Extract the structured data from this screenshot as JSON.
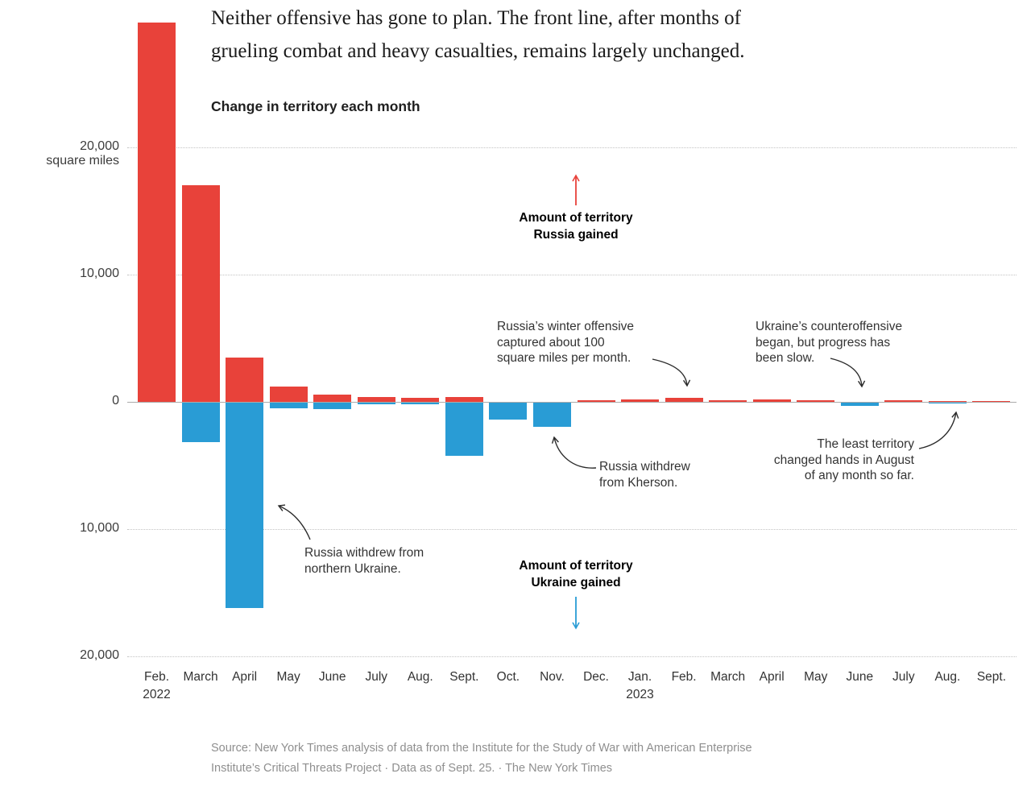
{
  "headline": "Neither offensive has gone to plan. The front line, after months of\ngrueling combat and heavy casualties, remains largely unchanged.",
  "source": "Source: New York Times analysis of data from the Institute for the Study of War with American Enterprise\nInstitute’s Critical Threats Project   ·   Data as of Sept. 25.   ·   The New York Times",
  "colors": {
    "russia_red": "#e8423a",
    "ukraine_blue": "#299cd5",
    "annotation_dark": "#2b2b2b",
    "source_gray": "#8f8f8f"
  },
  "annotations": {
    "russia_legend": "Amount of territory\nRussia gained",
    "ukraine_legend": "Amount of territory\nUkraine gained",
    "winter_offensive": "Russia’s winter offensive\ncaptured about 100\nsquare miles per month.",
    "counteroffensive": "Ukraine’s counteroffensive\nbegan, but progress has\nbeen slow.",
    "kherson": "Russia withdrew\nfrom Kherson.",
    "least_territory": "The least territory\nchanged hands in August\nof any month so far.",
    "northern_ukraine": "Russia withdrew from\nnorthern Ukraine."
  },
  "chart_data": {
    "type": "bar",
    "title": "Change in territory each month",
    "ylabel": "square miles (Russia gained above zero, Ukraine gained below zero)",
    "ylim": [
      -20000,
      30000
    ],
    "grid": "dotted horizontal",
    "categories": [
      "Feb.\n2022",
      "March",
      "April",
      "May",
      "June",
      "July",
      "Aug.",
      "Sept.",
      "Oct.",
      "Nov.",
      "Dec.",
      "Jan.\n2023",
      "Feb.",
      "March",
      "April",
      "May",
      "June",
      "July",
      "Aug.",
      "Sept."
    ],
    "series": [
      {
        "name": "Amount of territory Russia gained",
        "color": "#e8423a",
        "values": [
          29800,
          17000,
          3500,
          1200,
          600,
          350,
          300,
          400,
          0,
          0,
          100,
          170,
          300,
          150,
          220,
          130,
          0,
          130,
          30,
          60
        ]
      },
      {
        "name": "Amount of territory Ukraine gained",
        "color": "#299cd5",
        "values": [
          0,
          -3100,
          -16100,
          -450,
          -500,
          -100,
          -100,
          -4200,
          -1300,
          -1900,
          0,
          0,
          0,
          0,
          0,
          0,
          -250,
          0,
          -30,
          0
        ]
      }
    ],
    "y_axis": {
      "unit": "square miles",
      "ticks": [
        {
          "value": 20000,
          "label": "20,000",
          "unit": "square miles"
        },
        {
          "value": 10000,
          "label": "10,000"
        },
        {
          "value": 0,
          "label": "0"
        },
        {
          "value": -10000,
          "label": "10,000"
        },
        {
          "value": -20000,
          "label": "20,000"
        }
      ]
    }
  }
}
